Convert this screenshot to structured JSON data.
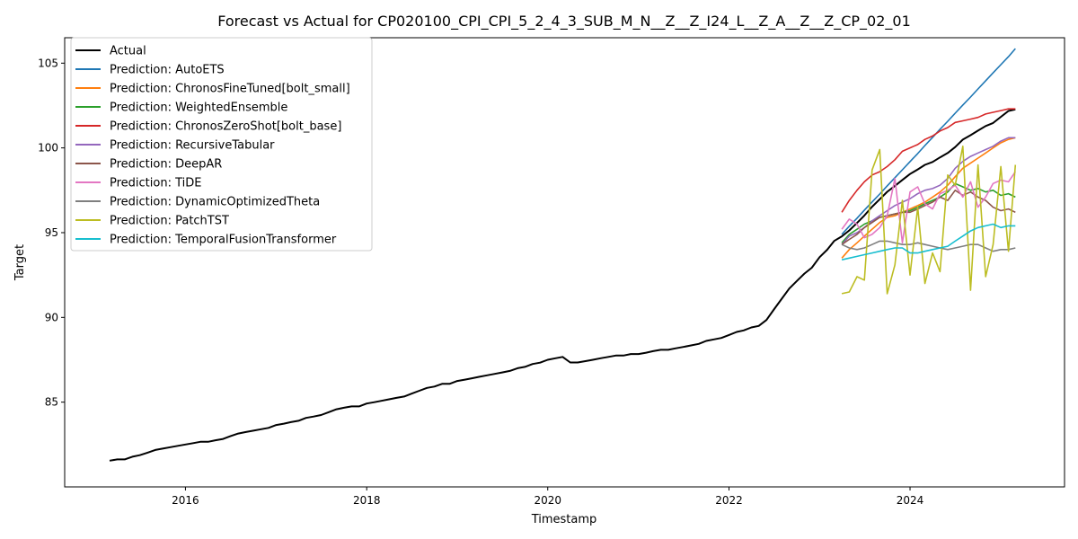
{
  "chart_data": {
    "type": "line",
    "title": "Forecast vs Actual for CP020100_CPI_CPI_5_2_4_3_SUB_M_N__Z__Z_I24_L__Z_A__Z__Z_CP_02_01",
    "xlabel": "Timestamp",
    "ylabel": "Target",
    "xlim": [
      "2014-09-01",
      "2025-09-15"
    ],
    "ylim": [
      80.0,
      106.5
    ],
    "x_ticks": [
      "2016",
      "2018",
      "2020",
      "2022",
      "2024"
    ],
    "y_ticks": [
      85,
      90,
      95,
      100,
      105
    ],
    "grid": false,
    "legend_position": "top-left",
    "actual": {
      "name": "Actual",
      "color": "#000000",
      "x": [
        "2015-03",
        "2015-04",
        "2015-05",
        "2015-06",
        "2015-07",
        "2015-08",
        "2015-09",
        "2015-10",
        "2015-11",
        "2015-12",
        "2016-01",
        "2016-02",
        "2016-03",
        "2016-04",
        "2016-05",
        "2016-06",
        "2016-07",
        "2016-08",
        "2016-09",
        "2016-10",
        "2016-11",
        "2016-12",
        "2017-01",
        "2017-02",
        "2017-03",
        "2017-04",
        "2017-05",
        "2017-06",
        "2017-07",
        "2017-08",
        "2017-09",
        "2017-10",
        "2017-11",
        "2017-12",
        "2018-01",
        "2018-02",
        "2018-03",
        "2018-04",
        "2018-05",
        "2018-06",
        "2018-07",
        "2018-08",
        "2018-09",
        "2018-10",
        "2018-11",
        "2018-12",
        "2019-01",
        "2019-02",
        "2019-03",
        "2019-04",
        "2019-05",
        "2019-06",
        "2019-07",
        "2019-08",
        "2019-09",
        "2019-10",
        "2019-11",
        "2019-12",
        "2020-01",
        "2020-02",
        "2020-03",
        "2020-04",
        "2020-05",
        "2020-06",
        "2020-07",
        "2020-08",
        "2020-09",
        "2020-10",
        "2020-11",
        "2020-12",
        "2021-01",
        "2021-02",
        "2021-03",
        "2021-04",
        "2021-05",
        "2021-06",
        "2021-07",
        "2021-08",
        "2021-09",
        "2021-10",
        "2021-11",
        "2021-12",
        "2022-01",
        "2022-02",
        "2022-03",
        "2022-04",
        "2022-05",
        "2022-06",
        "2022-07",
        "2022-08",
        "2022-09",
        "2022-10",
        "2022-11",
        "2022-12",
        "2023-01",
        "2023-02",
        "2023-03",
        "2023-04",
        "2023-05",
        "2023-06",
        "2023-07",
        "2023-08",
        "2023-09",
        "2023-10",
        "2023-11",
        "2023-12",
        "2024-01",
        "2024-02",
        "2024-03",
        "2024-04",
        "2024-05",
        "2024-06",
        "2024-07",
        "2024-08",
        "2024-09",
        "2024-10",
        "2024-11",
        "2024-12",
        "2025-01",
        "2025-02",
        "2025-03"
      ],
      "values": [
        81.55,
        81.62,
        81.62,
        81.78,
        81.87,
        82.02,
        82.18,
        82.26,
        82.34,
        82.42,
        82.5,
        82.58,
        82.66,
        82.66,
        82.75,
        82.83,
        83.0,
        83.15,
        83.24,
        83.32,
        83.4,
        83.48,
        83.65,
        83.73,
        83.82,
        83.9,
        84.07,
        84.15,
        84.24,
        84.41,
        84.58,
        84.67,
        84.75,
        84.75,
        84.92,
        85.0,
        85.08,
        85.17,
        85.25,
        85.33,
        85.5,
        85.67,
        85.84,
        85.92,
        86.08,
        86.08,
        86.25,
        86.33,
        86.41,
        86.5,
        86.58,
        86.67,
        86.75,
        86.84,
        87.0,
        87.08,
        87.25,
        87.33,
        87.5,
        87.59,
        87.67,
        87.34,
        87.34,
        87.42,
        87.5,
        87.59,
        87.67,
        87.75,
        87.75,
        87.84,
        87.84,
        87.92,
        88.01,
        88.09,
        88.09,
        88.18,
        88.26,
        88.35,
        88.44,
        88.61,
        88.7,
        88.79,
        88.96,
        89.14,
        89.23,
        89.41,
        89.5,
        89.85,
        90.47,
        91.08,
        91.7,
        92.14,
        92.58,
        92.93,
        93.55,
        93.99,
        94.51,
        94.78,
        95.13,
        95.57,
        96.01,
        96.53,
        96.97,
        97.41,
        97.76,
        98.11,
        98.46,
        98.73,
        99.0,
        99.17,
        99.44,
        99.7,
        100.05,
        100.49,
        100.75,
        101.02,
        101.29,
        101.47,
        101.83,
        102.18,
        102.27
      ]
    },
    "forecast_x": [
      "2023-04",
      "2023-05",
      "2023-06",
      "2023-07",
      "2023-08",
      "2023-09",
      "2023-10",
      "2023-11",
      "2023-12",
      "2024-01",
      "2024-02",
      "2024-03",
      "2024-04",
      "2024-05",
      "2024-06",
      "2024-07",
      "2024-08",
      "2024-09",
      "2024-10",
      "2024-11",
      "2024-12",
      "2025-01",
      "2025-02",
      "2025-03"
    ],
    "series": [
      {
        "name": "Prediction: AutoETS",
        "color": "#1f77b4",
        "values": [
          94.9,
          95.38,
          95.85,
          96.33,
          96.81,
          97.28,
          97.76,
          98.24,
          98.71,
          99.19,
          99.67,
          100.14,
          100.62,
          101.1,
          101.57,
          102.05,
          102.53,
          103.0,
          103.48,
          103.96,
          104.43,
          104.91,
          105.38,
          105.86
        ]
      },
      {
        "name": "Prediction: ChronosFineTuned[bolt_small]",
        "color": "#ff7f0e",
        "values": [
          93.5,
          94.0,
          94.4,
          94.8,
          95.2,
          95.6,
          95.9,
          96.0,
          96.2,
          96.4,
          96.6,
          96.8,
          97.1,
          97.4,
          97.8,
          98.3,
          98.8,
          99.1,
          99.4,
          99.7,
          100.0,
          100.3,
          100.5,
          100.6
        ]
      },
      {
        "name": "Prediction: WeightedEnsemble",
        "color": "#2ca02c",
        "values": [
          94.4,
          94.9,
          95.2,
          95.5,
          95.7,
          95.9,
          96.0,
          96.1,
          96.2,
          96.3,
          96.5,
          96.7,
          96.9,
          97.1,
          97.4,
          97.9,
          97.7,
          97.5,
          97.6,
          97.4,
          97.5,
          97.2,
          97.3,
          97.1
        ]
      },
      {
        "name": "Prediction: ChronosZeroShot[bolt_base]",
        "color": "#d62728",
        "values": [
          96.2,
          96.9,
          97.5,
          98.0,
          98.4,
          98.6,
          98.9,
          99.3,
          99.8,
          100.0,
          100.2,
          100.5,
          100.7,
          101.0,
          101.2,
          101.5,
          101.6,
          101.7,
          101.8,
          102.0,
          102.1,
          102.2,
          102.3,
          102.3
        ]
      },
      {
        "name": "Prediction: RecursiveTabular",
        "color": "#9467bd",
        "values": [
          94.3,
          94.8,
          95.0,
          95.3,
          95.7,
          96.0,
          96.3,
          96.6,
          96.8,
          97.0,
          97.3,
          97.5,
          97.6,
          97.8,
          98.2,
          98.8,
          99.2,
          99.5,
          99.7,
          99.9,
          100.1,
          100.4,
          100.6,
          100.6
        ]
      },
      {
        "name": "Prediction: DeepAR",
        "color": "#8c564b",
        "values": [
          94.3,
          94.6,
          94.9,
          95.3,
          95.6,
          95.9,
          96.0,
          96.1,
          96.2,
          96.2,
          96.4,
          96.6,
          96.8,
          97.1,
          96.9,
          97.5,
          97.2,
          97.4,
          97.1,
          96.9,
          96.5,
          96.3,
          96.4,
          96.2
        ]
      },
      {
        "name": "Prediction: TiDE",
        "color": "#e377c2",
        "values": [
          95.2,
          95.8,
          95.5,
          94.7,
          94.9,
          95.3,
          96.0,
          98.2,
          94.4,
          97.4,
          97.7,
          96.7,
          96.4,
          97.3,
          97.5,
          97.8,
          97.1,
          98.0,
          96.5,
          97.1,
          97.9,
          98.1,
          98.0,
          98.6
        ]
      },
      {
        "name": "Prediction: DynamicOptimizedTheta",
        "color": "#7f7f7f",
        "values": [
          94.3,
          94.1,
          94.0,
          94.1,
          94.3,
          94.5,
          94.5,
          94.4,
          94.3,
          94.3,
          94.4,
          94.3,
          94.2,
          94.1,
          94.0,
          94.1,
          94.2,
          94.3,
          94.3,
          94.1,
          93.9,
          94.0,
          94.0,
          94.1
        ]
      },
      {
        "name": "Prediction: PatchTST",
        "color": "#bcbd22",
        "values": [
          91.4,
          91.5,
          92.4,
          92.2,
          98.7,
          99.9,
          91.4,
          93.1,
          96.9,
          92.5,
          96.5,
          92.0,
          93.8,
          92.7,
          98.4,
          97.8,
          100.1,
          91.6,
          99.0,
          92.4,
          94.3,
          98.9,
          93.9,
          99.0
        ]
      },
      {
        "name": "Prediction: TemporalFusionTransformer",
        "color": "#17becf",
        "values": [
          93.4,
          93.5,
          93.6,
          93.7,
          93.8,
          93.9,
          94.0,
          94.1,
          94.1,
          93.8,
          93.8,
          93.9,
          94.0,
          94.1,
          94.2,
          94.5,
          94.8,
          95.1,
          95.3,
          95.4,
          95.5,
          95.3,
          95.4,
          95.4
        ]
      }
    ]
  }
}
